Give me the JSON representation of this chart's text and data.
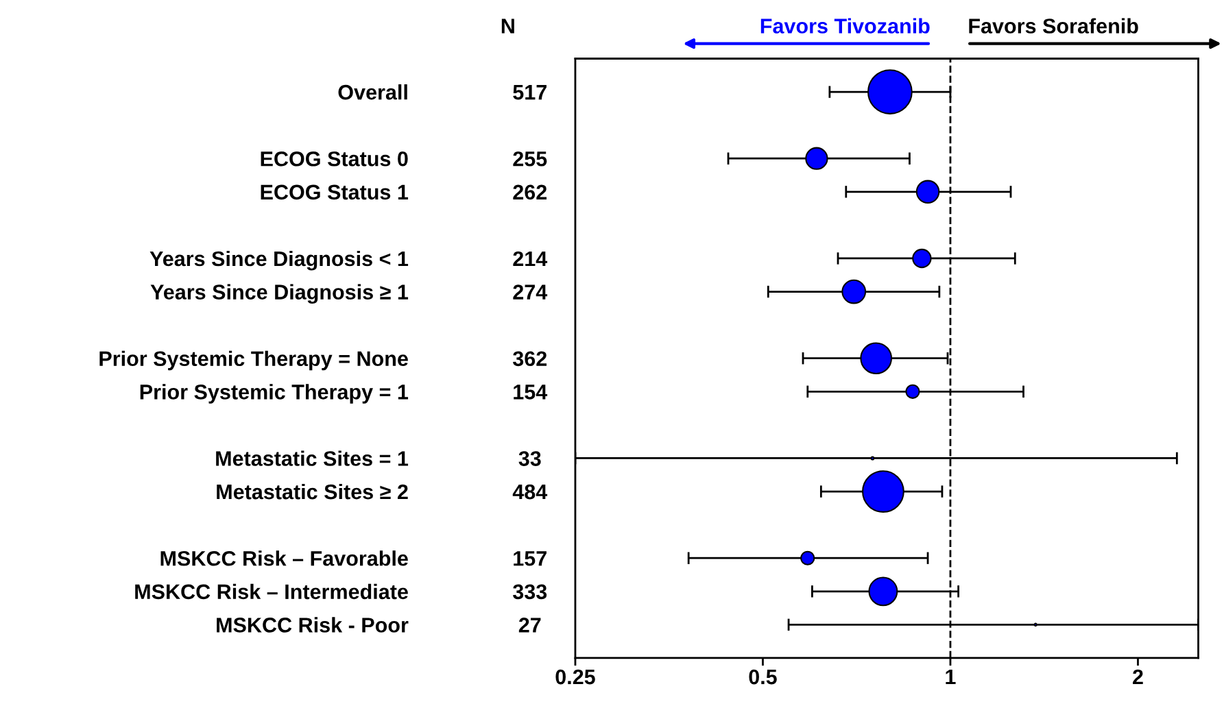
{
  "chart_data": {
    "type": "bubble",
    "orientation": "horizontal",
    "categories": [
      "Overall",
      null,
      "ECOG Status 0",
      "ECOG Status 1",
      null,
      "Years Since Diagnosis < 1",
      "Years Since Diagnosis ≥ 1",
      null,
      "Prior Systemic Therapy = None",
      "Prior Systemic Therapy = 1",
      null,
      "Metastatic Sites = 1",
      "Metastatic Sites ≥ 2",
      null,
      "MSKCC Risk – Favorable",
      "MSKCC Risk – Intermediate",
      "MSKCC Risk - Poor"
    ],
    "y2_categories": [
      "517",
      null,
      "255",
      "262",
      null,
      "214",
      "274",
      null,
      "362",
      "154",
      null,
      "33",
      "484",
      null,
      "157",
      "333",
      "27"
    ],
    "y2label": "N",
    "values": [
      0.8,
      null,
      0.61,
      0.92,
      null,
      0.9,
      0.7,
      null,
      0.76,
      0.87,
      null,
      0.75,
      0.78,
      null,
      0.59,
      0.78,
      1.37
    ],
    "errors": [
      [
        0.64,
        1.0
      ],
      null,
      [
        0.44,
        0.86
      ],
      [
        0.68,
        1.25
      ],
      null,
      [
        0.66,
        1.27
      ],
      [
        0.51,
        0.96
      ],
      null,
      [
        0.58,
        0.99
      ],
      [
        0.59,
        1.31
      ],
      null,
      [
        0.25,
        2.31
      ],
      [
        0.62,
        0.97
      ],
      null,
      [
        0.38,
        0.92
      ],
      [
        0.6,
        1.03
      ],
      [
        0.55,
        2.5
      ]
    ],
    "sizes": [
      1,
      null,
      0.24,
      0.26,
      null,
      0.17,
      0.28,
      null,
      0.49,
      0.09,
      null,
      0.004,
      0.88,
      null,
      0.09,
      0.41,
      0.003
    ],
    "color": "#0000ff",
    "marker": "circle",
    "log": "x",
    "xlim": [
      0.25,
      2.5
    ],
    "xticks": [
      0.25,
      0.5,
      1,
      2
    ],
    "ref_lines": [
      {
        "axis": "x",
        "value": 1,
        "label": null,
        "color": "#000000",
        "line_style": "dashed"
      }
    ],
    "annotations": [
      "Favors Tivozanib",
      "Favors Sorafenib"
    ],
    "grid": false,
    "legend": false
  }
}
